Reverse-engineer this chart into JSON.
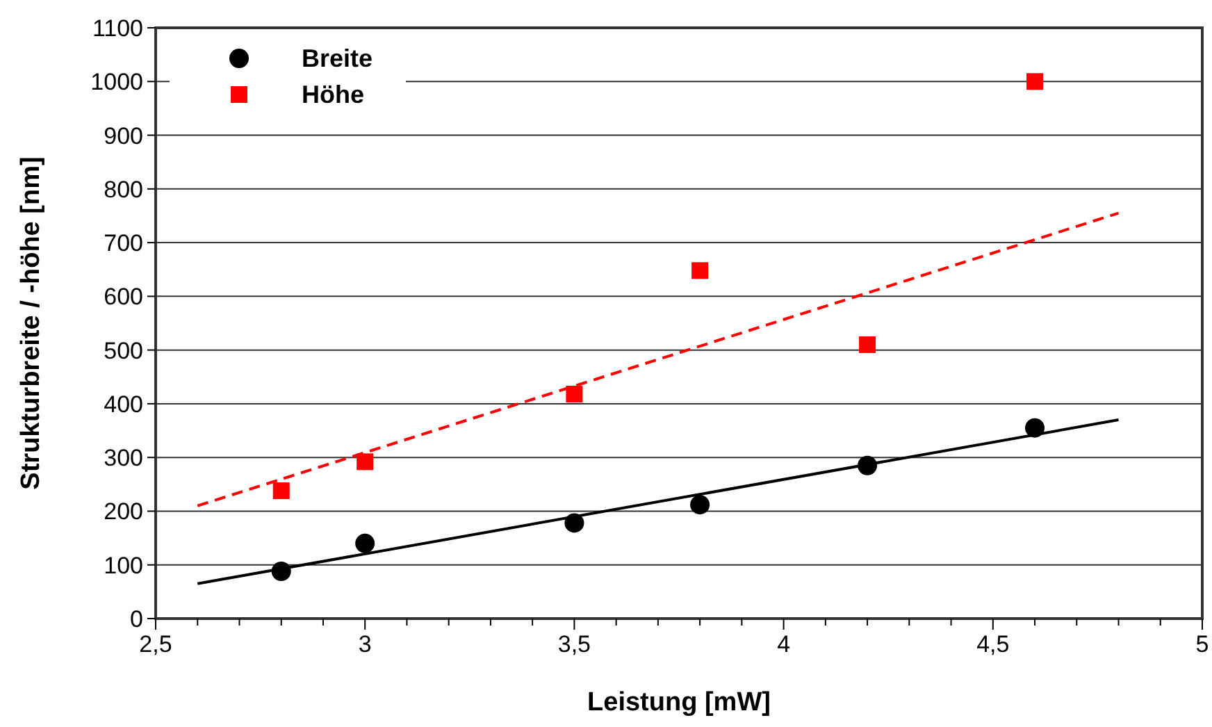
{
  "chart_data": {
    "type": "scatter",
    "xlabel": "Leistung [mW]",
    "ylabel": "Strukturbreite / -höhe [nm]",
    "xlim": [
      2.5,
      5
    ],
    "ylim": [
      0,
      1100
    ],
    "xticks": [
      {
        "value": 2.5,
        "label": "2,5"
      },
      {
        "value": 2.6,
        "label": null
      },
      {
        "value": 2.7,
        "label": null
      },
      {
        "value": 2.8,
        "label": null
      },
      {
        "value": 2.9,
        "label": null
      },
      {
        "value": 3,
        "label": "3"
      },
      {
        "value": 3.1,
        "label": null
      },
      {
        "value": 3.2,
        "label": null
      },
      {
        "value": 3.3,
        "label": null
      },
      {
        "value": 3.4,
        "label": null
      },
      {
        "value": 3.5,
        "label": "3,5"
      },
      {
        "value": 3.6,
        "label": null
      },
      {
        "value": 3.7,
        "label": null
      },
      {
        "value": 3.8,
        "label": null
      },
      {
        "value": 3.9,
        "label": null
      },
      {
        "value": 4,
        "label": "4"
      },
      {
        "value": 4.1,
        "label": null
      },
      {
        "value": 4.2,
        "label": null
      },
      {
        "value": 4.3,
        "label": null
      },
      {
        "value": 4.4,
        "label": null
      },
      {
        "value": 4.5,
        "label": "4,5"
      },
      {
        "value": 4.6,
        "label": null
      },
      {
        "value": 4.7,
        "label": null
      },
      {
        "value": 4.8,
        "label": null
      },
      {
        "value": 4.9,
        "label": null
      },
      {
        "value": 5,
        "label": "5"
      }
    ],
    "yticks": [
      0,
      100,
      200,
      300,
      400,
      500,
      600,
      700,
      800,
      900,
      1000,
      1100
    ],
    "grid": "y",
    "legend": "top left",
    "series": [
      {
        "name": "Breite",
        "marker": "circle",
        "color": "#000000",
        "x": [
          2.8,
          3.0,
          3.5,
          3.8,
          4.2,
          4.6
        ],
        "values": [
          88,
          140,
          178,
          212,
          285,
          355
        ]
      },
      {
        "name": "Höhe",
        "marker": "square",
        "color": "#ff0000",
        "x": [
          2.8,
          3.0,
          3.5,
          3.8,
          4.2,
          4.6
        ],
        "values": [
          238,
          292,
          418,
          648,
          510,
          1000
        ]
      },
      {
        "type": "line",
        "line_style": "solid",
        "color": "#000000",
        "x": [
          2.6,
          4.8
        ],
        "values": [
          65,
          370
        ]
      },
      {
        "type": "line",
        "line_style": "dashed",
        "color": "#ff0000",
        "x": [
          2.6,
          4.8
        ],
        "values": [
          210,
          755
        ]
      }
    ]
  }
}
